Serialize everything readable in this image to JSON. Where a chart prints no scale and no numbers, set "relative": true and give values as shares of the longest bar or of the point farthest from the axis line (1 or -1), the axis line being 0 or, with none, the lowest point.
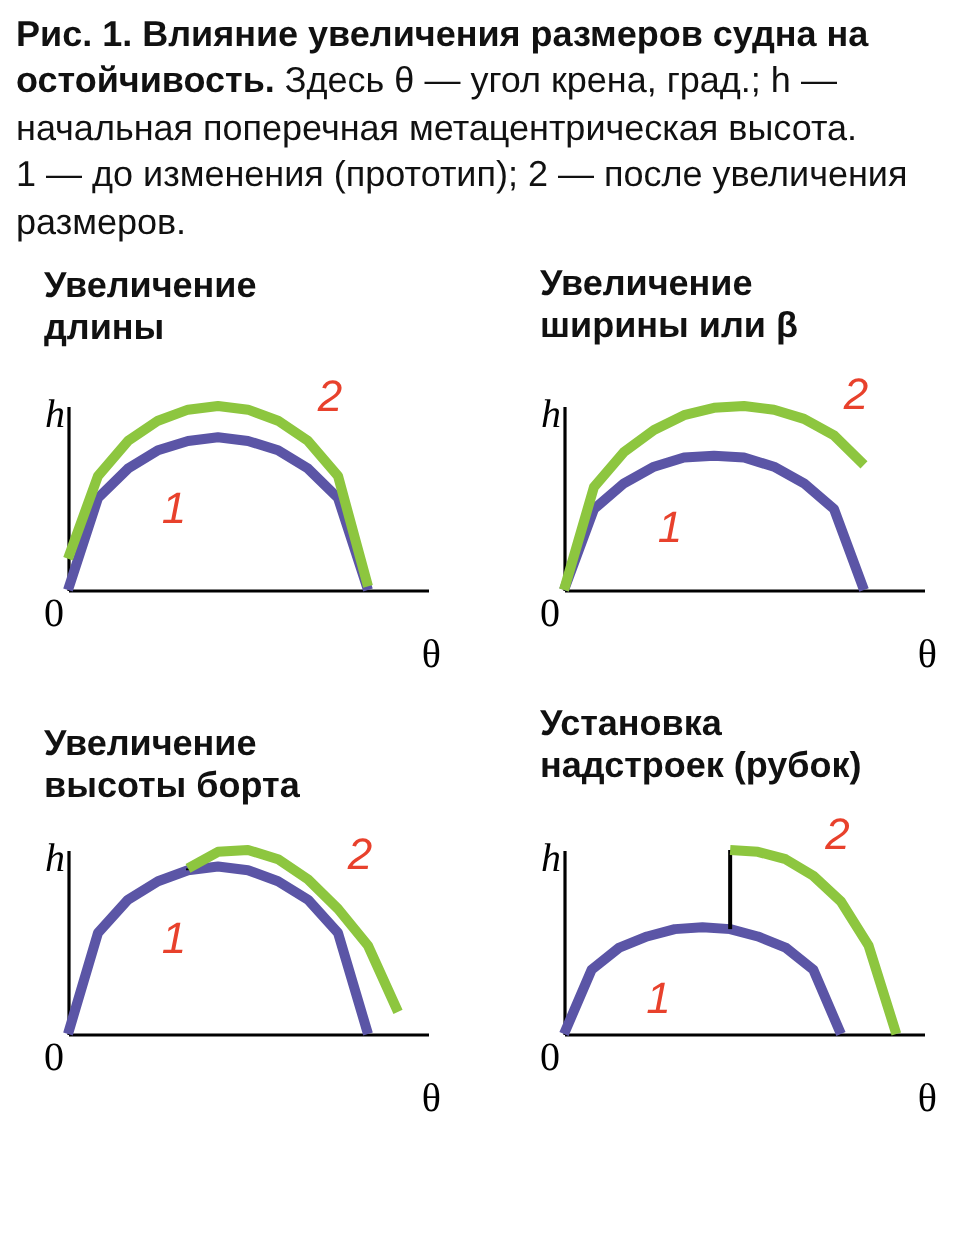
{
  "chart_data": [
    {
      "type": "line",
      "relative": true,
      "title": "Увеличение длины",
      "xlabel": "θ",
      "ylabel": "h",
      "annotations": [
        "Рис. 1. Влияние увеличения размеров судна на остойчивость.",
        "Здесь θ — угол крена, град.; h — начальная поперечная метацентрическая высота.",
        "1 — до изменения (прототип); 2 — после увеличения размеров.",
        "0"
      ],
      "categories": [
        null,
        null,
        null,
        null,
        null,
        null,
        null,
        null,
        null,
        null,
        null,
        null,
        null
      ],
      "series": [
        {
          "name": "1",
          "color": "#5b55a6",
          "values": [
            0,
            0.5,
            0.66,
            0.76,
            0.81,
            0.83,
            0.81,
            0.76,
            0.66,
            0.5,
            0,
            null,
            null
          ]
        },
        {
          "name": "2",
          "color": "#8dc63f",
          "values": [
            0.17,
            0.62,
            0.81,
            0.92,
            0.98,
            1,
            0.98,
            0.92,
            0.81,
            0.62,
            0.02,
            null,
            null
          ]
        }
      ]
    },
    {
      "type": "line",
      "relative": true,
      "title": "Увеличение ширины или β",
      "xlabel": "θ",
      "ylabel": "h",
      "annotations": [
        "0"
      ],
      "categories": [
        null,
        null,
        null,
        null,
        null,
        null,
        null,
        null,
        null,
        null,
        null,
        null,
        null
      ],
      "series": [
        {
          "name": "1",
          "color": "#5b55a6",
          "values": [
            0,
            0.44,
            0.58,
            0.67,
            0.72,
            0.73,
            0.72,
            0.67,
            0.58,
            0.44,
            0,
            null,
            null
          ]
        },
        {
          "name": "2",
          "color": "#8dc63f",
          "values": [
            0,
            0.56,
            0.75,
            0.87,
            0.95,
            0.99,
            1,
            0.98,
            0.93,
            0.84,
            0.68,
            null,
            null
          ]
        }
      ]
    },
    {
      "type": "line",
      "relative": true,
      "title": "Увеличение высоты борта",
      "xlabel": "θ",
      "ylabel": "h",
      "annotations": [
        "0"
      ],
      "categories": [
        null,
        null,
        null,
        null,
        null,
        null,
        null,
        null,
        null,
        null,
        null,
        null,
        null
      ],
      "series": [
        {
          "name": "1",
          "color": "#5b55a6",
          "values": [
            0,
            0.55,
            0.73,
            0.83,
            0.89,
            0.91,
            0.89,
            0.83,
            0.73,
            0.55,
            0,
            null,
            null
          ]
        },
        {
          "name": "2",
          "color": "#8dc63f",
          "values": [
            null,
            null,
            null,
            null,
            0.9,
            0.99,
            1,
            0.95,
            0.84,
            0.68,
            0.48,
            0.12,
            null
          ]
        }
      ]
    },
    {
      "type": "line",
      "relative": true,
      "title": "Установка надстроек (рубок)",
      "xlabel": "θ",
      "ylabel": "h",
      "annotations": [
        "0"
      ],
      "categories": [
        null,
        null,
        null,
        null,
        null,
        null,
        null,
        null,
        null,
        null,
        null,
        null,
        null,
        null
      ],
      "series": [
        {
          "name": "1",
          "color": "#5b55a6",
          "values": [
            0,
            0.35,
            0.47,
            0.53,
            0.57,
            0.58,
            0.57,
            0.53,
            0.47,
            0.35,
            0,
            null,
            null,
            null
          ]
        },
        {
          "name": "2",
          "color": "#8dc63f",
          "values": [
            null,
            null,
            null,
            null,
            null,
            null,
            1,
            0.99,
            0.95,
            0.86,
            0.72,
            0.48,
            0,
            null
          ]
        }
      ]
    }
  ]
}
